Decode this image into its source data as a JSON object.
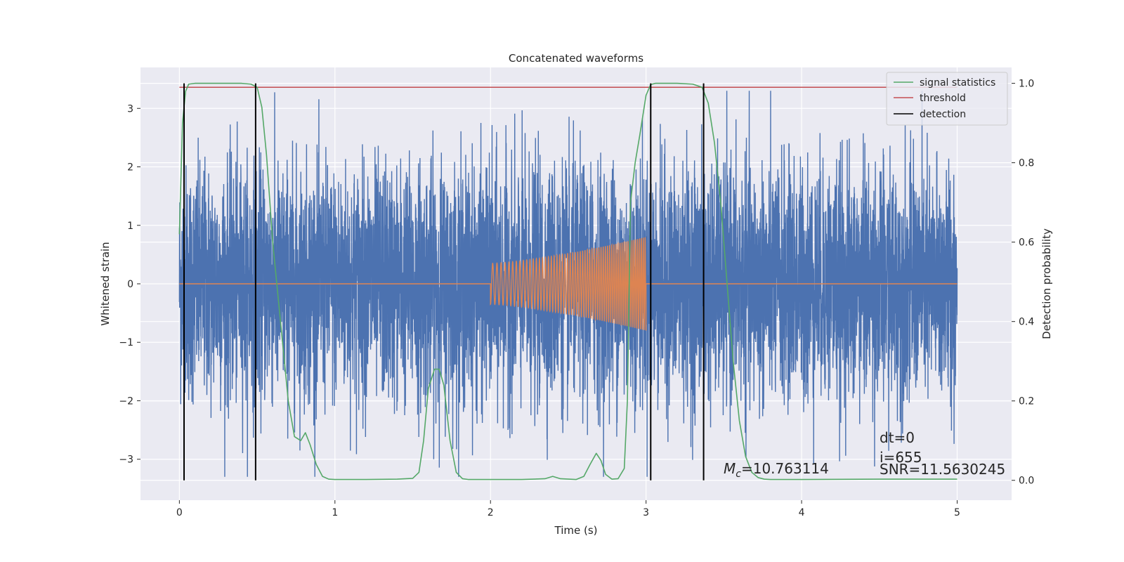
{
  "chart_data": {
    "type": "line",
    "title": "Concatenated waveforms",
    "xlabel": "Time (s)",
    "ylabel_left": "Whitened strain",
    "ylabel_right": "Detection probability",
    "xlim": [
      -0.25,
      5.35
    ],
    "ylim_left": [
      -3.7,
      3.7
    ],
    "ylim_right": [
      -0.05,
      1.04
    ],
    "x_ticks": [
      0,
      1,
      2,
      3,
      4,
      5
    ],
    "x_tick_labels": [
      "0",
      "1",
      "2",
      "3",
      "4",
      "5"
    ],
    "y_left_ticks": [
      3,
      2,
      1,
      0,
      -1,
      -2,
      -3
    ],
    "y_left_tick_labels": [
      "3",
      "2",
      "1",
      "0",
      "−1",
      "−2",
      "−3"
    ],
    "y_right_ticks": [
      1.0,
      0.8,
      0.6,
      0.4,
      0.2,
      0.0
    ],
    "y_right_tick_labels": [
      "1.0",
      "0.8",
      "0.6",
      "0.4",
      "0.2",
      "0.0"
    ],
    "grid": true,
    "legend_position": "top-right",
    "series": [
      {
        "kind": "noise",
        "axis": "left",
        "color": "#4c72b0",
        "x_range": [
          0,
          5
        ],
        "amplitude_rms": 1.0,
        "peak": 3.3
      },
      {
        "kind": "chirp",
        "axis": "left",
        "color": "#dd8452",
        "x_range": [
          0,
          5
        ],
        "chirp_x_range": [
          2.0,
          3.0
        ],
        "amplitude_start": 0.35,
        "amplitude_end": 0.8
      },
      {
        "name": "signal statistics",
        "kind": "curve",
        "axis": "right",
        "color": "#55a868",
        "x": [
          0.0,
          0.02,
          0.04,
          0.06,
          0.1,
          0.2,
          0.3,
          0.4,
          0.46,
          0.5,
          0.53,
          0.56,
          0.6,
          0.65,
          0.7,
          0.74,
          0.78,
          0.81,
          0.84,
          0.88,
          0.92,
          0.96,
          1.0,
          1.2,
          1.4,
          1.5,
          1.54,
          1.57,
          1.6,
          1.64,
          1.67,
          1.7,
          1.74,
          1.78,
          1.82,
          1.86,
          1.9,
          2.0,
          2.2,
          2.35,
          2.4,
          2.45,
          2.55,
          2.6,
          2.64,
          2.68,
          2.71,
          2.74,
          2.78,
          2.82,
          2.86,
          2.88,
          2.9,
          2.93,
          2.96,
          3.0,
          3.03,
          3.06,
          3.1,
          3.2,
          3.3,
          3.36,
          3.4,
          3.44,
          3.48,
          3.52,
          3.56,
          3.6,
          3.64,
          3.68,
          3.72,
          3.76,
          3.8,
          4.0,
          4.5,
          5.0
        ],
        "values": [
          0.62,
          0.9,
          0.98,
          0.998,
          1.0,
          1.0,
          1.0,
          1.0,
          0.998,
          0.99,
          0.94,
          0.82,
          0.6,
          0.4,
          0.2,
          0.11,
          0.1,
          0.12,
          0.09,
          0.04,
          0.01,
          0.003,
          0.002,
          0.002,
          0.003,
          0.005,
          0.02,
          0.1,
          0.23,
          0.28,
          0.28,
          0.24,
          0.1,
          0.02,
          0.004,
          0.002,
          0.002,
          0.002,
          0.002,
          0.004,
          0.01,
          0.004,
          0.002,
          0.01,
          0.04,
          0.068,
          0.05,
          0.015,
          0.003,
          0.004,
          0.03,
          0.2,
          0.7,
          0.8,
          0.87,
          0.97,
          0.997,
          1.0,
          1.0,
          1.0,
          0.998,
          0.99,
          0.95,
          0.85,
          0.7,
          0.5,
          0.3,
          0.15,
          0.06,
          0.02,
          0.007,
          0.003,
          0.002,
          0.002,
          0.003,
          0.003
        ]
      },
      {
        "name": "threshold",
        "kind": "hline",
        "axis": "right",
        "color": "#c44e52",
        "x_range": [
          0,
          5
        ],
        "value": 0.99
      },
      {
        "name": "detection",
        "kind": "vlines",
        "color": "#000000",
        "x": [
          0.03,
          0.49,
          3.03,
          3.37
        ],
        "y_range_right": [
          0.0,
          1.0
        ]
      }
    ],
    "legend_entries": [
      {
        "label": "signal statistics",
        "color": "#55a868"
      },
      {
        "label": "threshold",
        "color": "#c44e52"
      },
      {
        "label": "detection",
        "color": "#000000"
      }
    ],
    "annotations": {
      "mc_symbol": "M",
      "mc_subscript": "c",
      "mc_value": "=10.763114",
      "dt": "dt=0",
      "index": "i=655",
      "snr": "SNR=11.5630245"
    }
  }
}
